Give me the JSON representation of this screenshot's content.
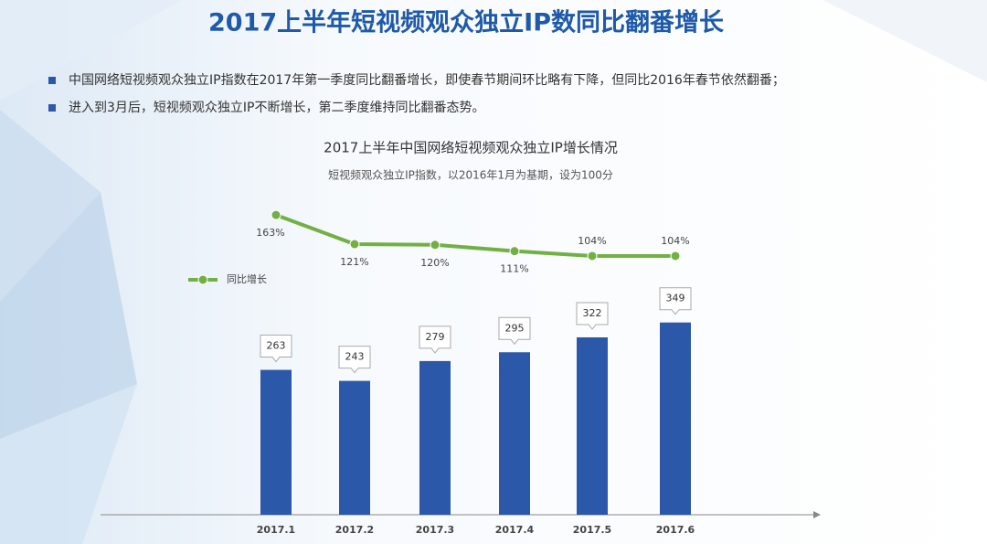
{
  "title": "2017上半年短视频观众独立IP数同比翻番增长",
  "bullets": [
    "中国网络短视频观众独立IP指数在2017年第一季度同比翻番增长，即使春节期间环比略有下降，但同比2016年春节依然翻番；",
    "进入到3月后，短视频观众独立IP不断增长，第二季度维持同比翻番态势。"
  ],
  "chart_data": {
    "type": "bar",
    "title": "2017上半年中国网络短视频观众独立IP增长情况",
    "subtitle": "短视频观众独立IP指数，以2016年1月为基期，设为100分",
    "categories": [
      "2017.1",
      "2017.2",
      "2017.3",
      "2017.4",
      "2017.5",
      "2017.6"
    ],
    "series": [
      {
        "color": "#2b58a8",
        "values": [
          263,
          243,
          279,
          295,
          322,
          349
        ]
      },
      {
        "name": "同比增长",
        "type": "line",
        "axis": "y2",
        "color": "#72b043",
        "values": [
          163,
          121,
          120,
          111,
          104,
          104
        ],
        "value_labels": [
          "163%",
          "121%",
          "120%",
          "111%",
          "104%",
          "104%"
        ]
      }
    ],
    "ylim": [
      0,
      400
    ],
    "y2lim": [
      0,
      200
    ],
    "legend": "left"
  }
}
